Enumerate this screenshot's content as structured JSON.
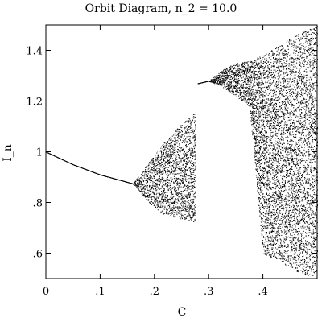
{
  "chart_data": {
    "type": "scatter",
    "title": "Orbit Diagram, n_2 = 10.0",
    "xlabel": "C",
    "ylabel": "I_n",
    "xlim": [
      0,
      0.5
    ],
    "ylim": [
      0.5,
      1.5
    ],
    "x_ticks": [
      {
        "value": 0,
        "label": "0"
      },
      {
        "value": 0.1,
        "label": ".1"
      },
      {
        "value": 0.2,
        "label": ".2"
      },
      {
        "value": 0.3,
        "label": ".3"
      },
      {
        "value": 0.4,
        "label": ".4"
      }
    ],
    "y_ticks": [
      {
        "value": 0.6,
        "label": ".6"
      },
      {
        "value": 0.8,
        "label": ".8"
      },
      {
        "value": 1.0,
        "label": "1"
      },
      {
        "value": 1.2,
        "label": "1.2"
      },
      {
        "value": 1.4,
        "label": "1.4"
      }
    ],
    "series": [
      {
        "branch": "lower",
        "description_points_x": [
          0,
          0.05,
          0.1,
          0.16,
          0.19,
          0.21,
          0.24,
          0.275
        ],
        "points_y_lower": [
          1.0,
          0.95,
          0.91,
          0.875,
          0.8,
          0.76,
          0.74,
          0.72
        ],
        "points_y_upper": [
          1.0,
          0.95,
          0.91,
          0.875,
          0.96,
          1.02,
          1.09,
          1.16
        ]
      },
      {
        "branch": "upper",
        "description_points_x": [
          0.28,
          0.3,
          0.33,
          0.35,
          0.375,
          0.4,
          0.43,
          0.46,
          0.5
        ],
        "points_y_lower": [
          1.27,
          1.28,
          1.25,
          1.22,
          1.18,
          0.6,
          0.57,
          0.53,
          0.5
        ],
        "points_y_upper": [
          1.27,
          1.28,
          1.33,
          1.35,
          1.36,
          1.38,
          1.42,
          1.46,
          1.5
        ]
      }
    ],
    "colors": {
      "points": "#000000",
      "background": "#ffffff"
    }
  }
}
